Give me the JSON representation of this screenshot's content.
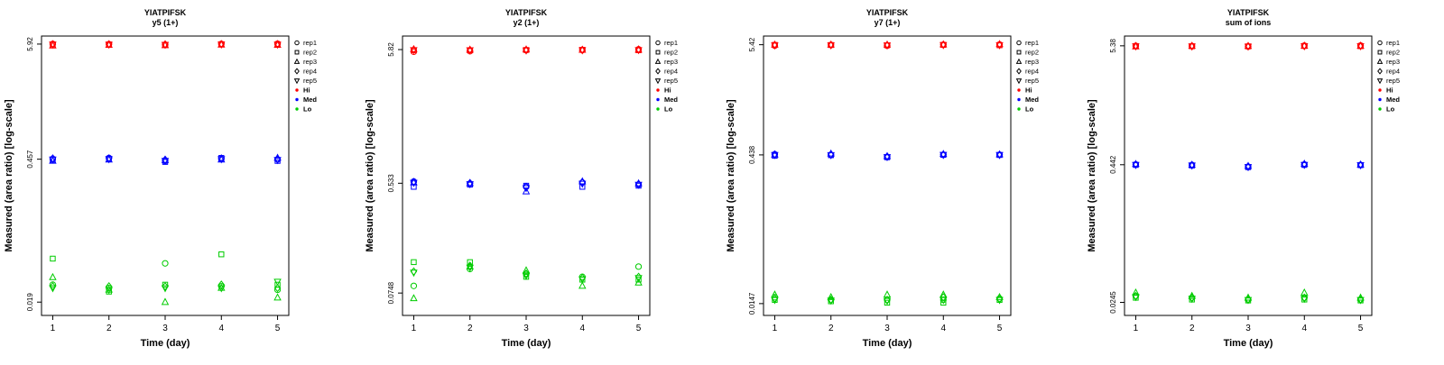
{
  "page": {
    "background": "#ffffff"
  },
  "legend": {
    "reps": [
      "rep1",
      "rep2",
      "rep3",
      "rep4",
      "rep5"
    ],
    "groups": [
      {
        "label": "Hi",
        "color": "#ff0000"
      },
      {
        "label": "Med",
        "color": "#0000ff"
      },
      {
        "label": "Lo",
        "color": "#00cc00"
      }
    ]
  },
  "chart_data": [
    {
      "type": "scatter",
      "title": "YIATPIFSK",
      "subtitle": "y5 (1+)",
      "xlabel": "Time (day)",
      "ylabel": "Measured (area ratio) [log-scale]",
      "x_days": [
        1,
        2,
        3,
        4,
        5
      ],
      "yticks": [
        {
          "label": "5.92",
          "value": 5.92
        },
        {
          "label": "0.457",
          "value": 0.457
        },
        {
          "label": "0.019",
          "value": 0.019
        }
      ],
      "ylog_range": [
        -1.85,
        0.85
      ],
      "series": [
        {
          "name": "Hi",
          "color": "#ff0000",
          "values_by_day": [
            [
              5.95,
              5.85,
              5.72,
              5.9,
              5.88
            ],
            [
              5.92,
              5.88,
              5.8,
              5.9,
              5.86
            ],
            [
              5.85,
              5.8,
              5.76,
              5.88,
              5.84
            ],
            [
              5.95,
              5.9,
              5.84,
              5.92,
              5.88
            ],
            [
              5.98,
              5.9,
              5.8,
              5.92,
              5.86
            ]
          ]
        },
        {
          "name": "Med",
          "color": "#0000ff",
          "values_by_day": [
            [
              0.46,
              0.45,
              0.44,
              0.465,
              0.455
            ],
            [
              0.47,
              0.46,
              0.452,
              0.465,
              0.458
            ],
            [
              0.44,
              0.43,
              0.447,
              0.452,
              0.442
            ],
            [
              0.46,
              0.47,
              0.452,
              0.465,
              0.458
            ],
            [
              0.455,
              0.44,
              0.47,
              0.46,
              0.45
            ]
          ]
        },
        {
          "name": "Lo",
          "color": "#00cc00",
          "values_by_day": [
            [
              0.028,
              0.05,
              0.033,
              0.027,
              0.026
            ],
            [
              0.026,
              0.024,
              0.025,
              0.027,
              0.025
            ],
            [
              0.045,
              0.028,
              0.019,
              0.027,
              0.026
            ],
            [
              0.027,
              0.055,
              0.026,
              0.028,
              0.026
            ],
            [
              0.025,
              0.028,
              0.021,
              0.026,
              0.03
            ]
          ]
        }
      ]
    },
    {
      "type": "scatter",
      "title": "YIATPIFSK",
      "subtitle": "y2 (1+)",
      "xlabel": "Time (day)",
      "ylabel": "Measured (area ratio) [log-scale]",
      "x_days": [
        1,
        2,
        3,
        4,
        5
      ],
      "yticks": [
        {
          "label": "5.82",
          "value": 5.82
        },
        {
          "label": "0.533",
          "value": 0.533
        },
        {
          "label": "0.0748",
          "value": 0.0748
        }
      ],
      "ylog_range": [
        -1.3,
        0.87
      ],
      "series": [
        {
          "name": "Hi",
          "color": "#ff0000",
          "values_by_day": [
            [
              5.6,
              5.75,
              5.85,
              5.8,
              5.78
            ],
            [
              5.65,
              5.75,
              5.8,
              5.78,
              5.76
            ],
            [
              5.75,
              5.78,
              5.82,
              5.77,
              5.74
            ],
            [
              5.75,
              5.8,
              5.78,
              5.79,
              5.76
            ],
            [
              5.85,
              5.75,
              5.8,
              5.82,
              5.78
            ]
          ]
        },
        {
          "name": "Med",
          "color": "#0000ff",
          "values_by_day": [
            [
              0.55,
              0.5,
              0.54,
              0.545,
              0.538
            ],
            [
              0.53,
              0.52,
              0.532,
              0.535,
              0.525
            ],
            [
              0.5,
              0.51,
              0.46,
              0.5,
              0.49
            ],
            [
              0.54,
              0.5,
              0.55,
              0.54,
              0.53
            ],
            [
              0.52,
              0.51,
              0.53,
              0.525,
              0.52
            ]
          ]
        },
        {
          "name": "Lo",
          "color": "#00cc00",
          "values_by_day": [
            [
              0.085,
              0.13,
              0.068,
              0.11,
              0.108
            ],
            [
              0.115,
              0.13,
              0.12,
              0.122,
              0.118
            ],
            [
              0.105,
              0.1,
              0.112,
              0.106,
              0.102
            ],
            [
              0.1,
              0.095,
              0.085,
              0.098,
              0.096
            ],
            [
              0.12,
              0.095,
              0.09,
              0.1,
              0.098
            ]
          ]
        }
      ]
    },
    {
      "type": "scatter",
      "title": "YIATPIFSK",
      "subtitle": "y7 (1+)",
      "xlabel": "Time (day)",
      "ylabel": "Measured (area ratio) [log-scale]",
      "x_days": [
        1,
        2,
        3,
        4,
        5
      ],
      "yticks": [
        {
          "label": "5.42",
          "value": 5.42
        },
        {
          "label": "0.438",
          "value": 0.438
        },
        {
          "label": "0.0147",
          "value": 0.0147
        }
      ],
      "ylog_range": [
        -1.95,
        0.82
      ],
      "series": [
        {
          "name": "Hi",
          "color": "#ff0000",
          "values_by_day": [
            [
              5.3,
              5.4,
              5.42,
              5.38,
              5.36
            ],
            [
              5.4,
              5.38,
              5.42,
              5.39,
              5.37
            ],
            [
              5.3,
              5.35,
              5.42,
              5.37,
              5.36
            ],
            [
              5.42,
              5.4,
              5.45,
              5.41,
              5.39
            ],
            [
              5.45,
              5.35,
              5.48,
              5.42,
              5.38
            ]
          ]
        },
        {
          "name": "Med",
          "color": "#0000ff",
          "values_by_day": [
            [
              0.445,
              0.43,
              0.44,
              0.442,
              0.438
            ],
            [
              0.44,
              0.435,
              0.45,
              0.44,
              0.437
            ],
            [
              0.42,
              0.415,
              0.425,
              0.421,
              0.418
            ],
            [
              0.44,
              0.438,
              0.446,
              0.441,
              0.439
            ],
            [
              0.44,
              0.437,
              0.442,
              0.44,
              0.438
            ]
          ]
        },
        {
          "name": "Lo",
          "color": "#00cc00",
          "values_by_day": [
            [
              0.017,
              0.016,
              0.018,
              0.0165,
              0.016
            ],
            [
              0.016,
              0.0155,
              0.017,
              0.016,
              0.0158
            ],
            [
              0.016,
              0.015,
              0.018,
              0.016,
              0.0157
            ],
            [
              0.016,
              0.015,
              0.018,
              0.017,
              0.016
            ],
            [
              0.0165,
              0.016,
              0.017,
              0.0162,
              0.016
            ]
          ]
        }
      ]
    },
    {
      "type": "scatter",
      "title": "YIATPIFSK",
      "subtitle": "sum of ions",
      "xlabel": "Time (day)",
      "ylabel": "Measured (area ratio) [log-scale]",
      "x_days": [
        1,
        2,
        3,
        4,
        5
      ],
      "yticks": [
        {
          "label": "5.38",
          "value": 5.38
        },
        {
          "label": "0.442",
          "value": 0.442
        },
        {
          "label": "0.0245",
          "value": 0.0245
        }
      ],
      "ylog_range": [
        -1.73,
        0.82
      ],
      "series": [
        {
          "name": "Hi",
          "color": "#ff0000",
          "values_by_day": [
            [
              5.38,
              5.35,
              5.3,
              5.36,
              5.34
            ],
            [
              5.35,
              5.33,
              5.36,
              5.34,
              5.33
            ],
            [
              5.3,
              5.32,
              5.35,
              5.33,
              5.31
            ],
            [
              5.4,
              5.36,
              5.38,
              5.37,
              5.35
            ],
            [
              5.42,
              5.34,
              5.36,
              5.38,
              5.35
            ]
          ]
        },
        {
          "name": "Med",
          "color": "#0000ff",
          "values_by_day": [
            [
              0.445,
              0.44,
              0.448,
              0.443,
              0.441
            ],
            [
              0.44,
              0.435,
              0.44,
              0.438,
              0.436
            ],
            [
              0.425,
              0.42,
              0.43,
              0.424,
              0.422
            ],
            [
              0.445,
              0.44,
              0.45,
              0.444,
              0.442
            ],
            [
              0.44,
              0.438,
              0.442,
              0.44,
              0.439
            ]
          ]
        },
        {
          "name": "Lo",
          "color": "#00cc00",
          "values_by_day": [
            [
              0.028,
              0.027,
              0.03,
              0.028,
              0.0275
            ],
            [
              0.027,
              0.026,
              0.028,
              0.027,
              0.0265
            ],
            [
              0.026,
              0.0255,
              0.027,
              0.026,
              0.0258
            ],
            [
              0.027,
              0.026,
              0.03,
              0.027,
              0.0265
            ],
            [
              0.026,
              0.0255,
              0.027,
              0.026,
              0.0258
            ]
          ]
        }
      ]
    }
  ]
}
